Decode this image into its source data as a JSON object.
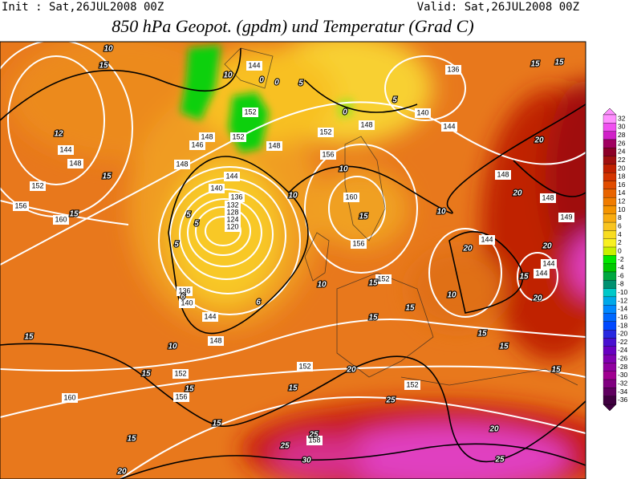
{
  "header": {
    "init": "Init : Sat,26JUL2008 00Z",
    "valid": "Valid: Sat,26JUL2008 00Z",
    "title": "850 hPa Geopot. (gpdm) und Temperatur (Grad C)"
  },
  "colorbar": {
    "values": [
      32,
      30,
      28,
      26,
      24,
      22,
      20,
      18,
      16,
      14,
      12,
      10,
      8,
      6,
      4,
      2,
      0,
      -2,
      -4,
      -6,
      -8,
      -10,
      -12,
      -14,
      -16,
      -18,
      -20,
      -22,
      -24,
      -26,
      -28,
      -30,
      -32,
      -34,
      -36
    ],
    "colors": [
      "#ff90ff",
      "#f050f0",
      "#d020c8",
      "#a00060",
      "#8c0028",
      "#a01010",
      "#c02000",
      "#d43400",
      "#e04c00",
      "#e86400",
      "#f07c00",
      "#f49400",
      "#f8ac10",
      "#f8c420",
      "#f8dc20",
      "#f8f020",
      "#c8f000",
      "#00e800",
      "#00c800",
      "#00a840",
      "#009070",
      "#00c8c8",
      "#00a8e8",
      "#0088ff",
      "#0068ff",
      "#0048ff",
      "#2828e0",
      "#4810d0",
      "#6800c0",
      "#8000b0",
      "#9000a0",
      "#a00090",
      "#800080",
      "#600060",
      "#400040"
    ]
  },
  "contours": {
    "geopotential_labels": [
      144,
      136,
      140,
      144,
      152,
      152,
      148,
      146,
      148,
      148,
      152,
      156,
      148,
      144,
      140,
      136,
      132,
      128,
      124,
      120,
      144,
      148,
      152,
      156,
      160,
      160,
      156,
      152,
      148,
      148,
      149,
      144,
      144,
      144,
      136,
      140,
      144,
      148,
      152,
      152,
      152,
      156,
      160,
      158
    ],
    "temperature_labels": [
      10,
      15,
      12,
      0,
      0,
      5,
      0,
      5,
      10,
      15,
      15,
      20,
      20,
      10,
      15,
      10,
      10,
      5,
      5,
      5,
      6,
      6,
      10,
      10,
      15,
      15,
      15,
      20,
      20,
      15,
      20,
      10,
      15,
      15,
      15,
      15,
      15,
      15,
      15,
      20,
      25,
      20,
      15,
      15,
      20,
      25,
      25,
      30,
      25,
      15,
      15
    ]
  }
}
